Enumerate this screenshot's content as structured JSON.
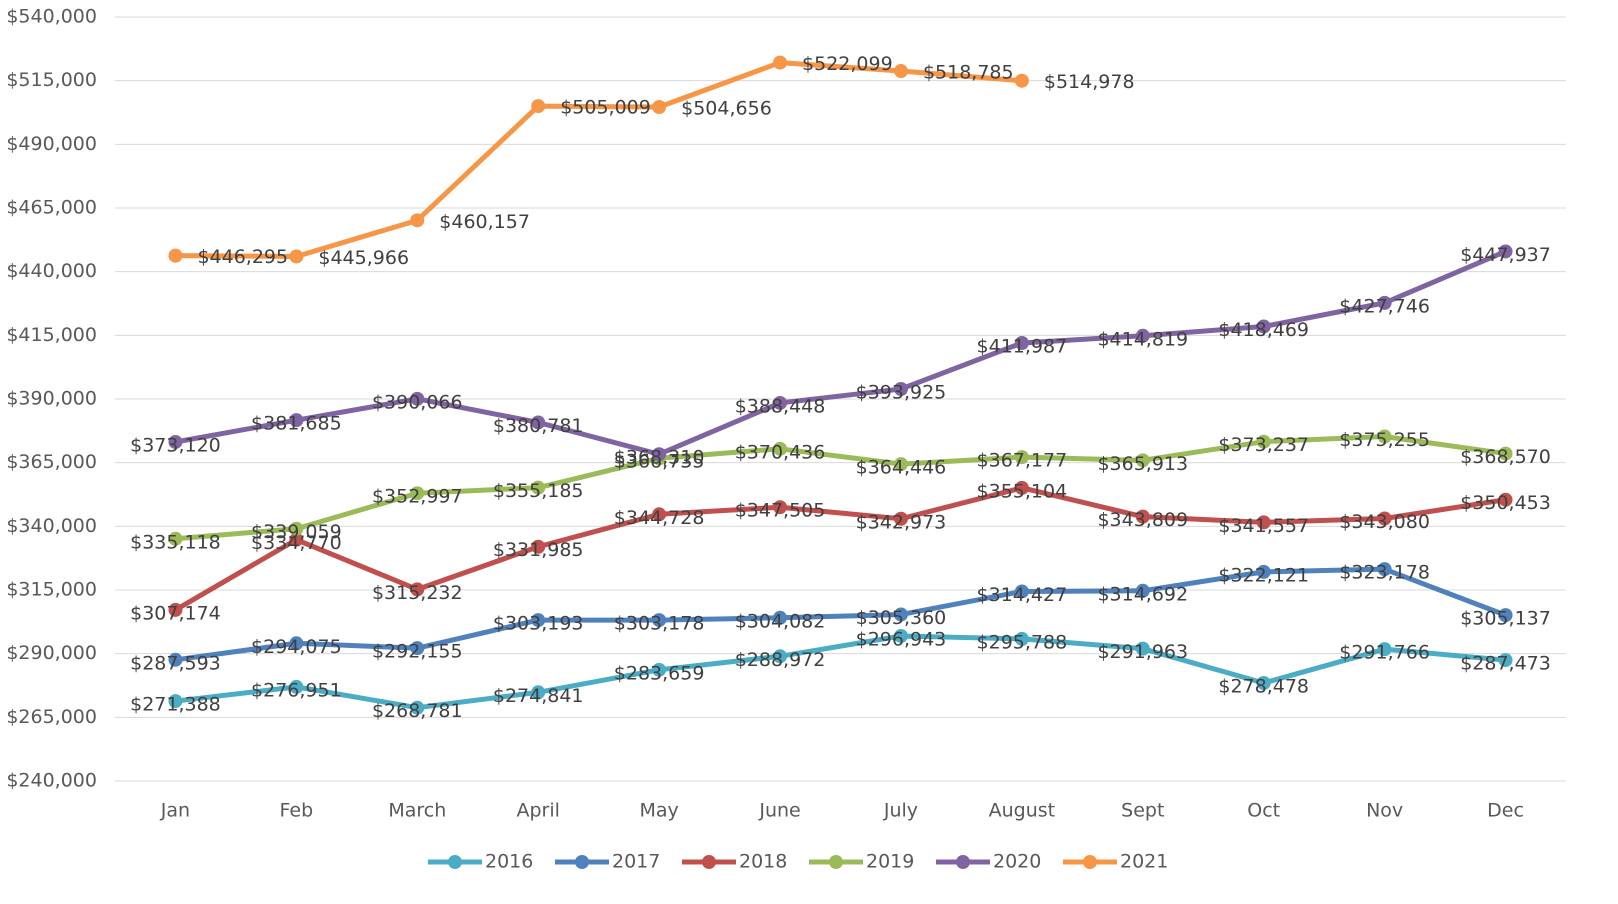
{
  "chart_data": {
    "type": "line",
    "categories": [
      "Jan",
      "Feb",
      "March",
      "April",
      "May",
      "June",
      "July",
      "August",
      "Sept",
      "Oct",
      "Nov",
      "Dec"
    ],
    "ylim": [
      240000,
      540000
    ],
    "yticks": [
      {
        "value": 240000,
        "label": "$240,000"
      },
      {
        "value": 265000,
        "label": "$265,000"
      },
      {
        "value": 290000,
        "label": "$290,000"
      },
      {
        "value": 315000,
        "label": "$315,000"
      },
      {
        "value": 340000,
        "label": "$340,000"
      },
      {
        "value": 365000,
        "label": "$365,000"
      },
      {
        "value": 390000,
        "label": "$390,000"
      },
      {
        "value": 415000,
        "label": "$415,000"
      },
      {
        "value": 440000,
        "label": "$440,000"
      },
      {
        "value": 465000,
        "label": "$465,000"
      },
      {
        "value": 490000,
        "label": "$490,000"
      },
      {
        "value": 515000,
        "label": "$515,000"
      },
      {
        "value": 540000,
        "label": "$540,000"
      }
    ],
    "grid": true,
    "legend": "bottom",
    "series": [
      {
        "name": "2016",
        "color": "#4bacc6",
        "values": [
          271388,
          276951,
          268781,
          274841,
          283659,
          288972,
          296943,
          295788,
          291963,
          278478,
          291766,
          287473
        ],
        "value_labels": [
          "$271,388",
          "$276,951",
          "$268,781",
          "$274,841",
          "$283,659",
          "$288,972",
          "$296,943",
          "$295,788",
          "$291,963",
          "$278,478",
          "$291,766",
          "$287,473"
        ]
      },
      {
        "name": "2017",
        "color": "#4f81bd",
        "values": [
          287593,
          294075,
          292155,
          303193,
          303178,
          304082,
          305360,
          314427,
          314692,
          322121,
          323178,
          305137
        ],
        "value_labels": [
          "$287,593",
          "$294,075",
          "$292,155",
          "$303,193",
          "$303,178",
          "$304,082",
          "$305,360",
          "$314,427",
          "$314,692",
          "$322,121",
          "$323,178",
          "$305,137"
        ]
      },
      {
        "name": "2018",
        "color": "#c0504d",
        "values": [
          307174,
          334770,
          315232,
          331985,
          344728,
          347505,
          342973,
          355104,
          343809,
          341557,
          343080,
          350453
        ],
        "value_labels": [
          "$307,174",
          "$334,770",
          "$315,232",
          "$331,985",
          "$344,728",
          "$347,505",
          "$342,973",
          "$355,104",
          "$343,809",
          "$341,557",
          "$343,080",
          "$350,453"
        ]
      },
      {
        "name": "2019",
        "color": "#9bbb59",
        "values": [
          335118,
          339059,
          352997,
          355185,
          366735,
          370436,
          364446,
          367177,
          365913,
          373237,
          375255,
          368570
        ],
        "value_labels": [
          "$335,118",
          "$339,059",
          "$352,997",
          "$355,185",
          "$366,735",
          "$370,436",
          "$364,446",
          "$367,177",
          "$365,913",
          "$373,237",
          "$375,255",
          "$368,570"
        ]
      },
      {
        "name": "2020",
        "color": "#8064a2",
        "values": [
          373120,
          381685,
          390066,
          380781,
          368310,
          388448,
          393925,
          411987,
          414819,
          418469,
          427746,
          447937
        ],
        "value_labels": [
          "$373,120",
          "$381,685",
          "$390,066",
          "$380,781",
          "$368,310",
          "$388,448",
          "$393,925",
          "$411,987",
          "$414,819",
          "$418,469",
          "$427,746",
          "$447,937"
        ]
      },
      {
        "name": "2021",
        "color": "#f79646",
        "values": [
          446295,
          445966,
          460157,
          505009,
          504656,
          522099,
          518785,
          514978,
          null,
          null,
          null,
          null
        ],
        "value_labels": [
          "$446,295",
          "$445,966",
          "$460,157",
          "$505,009",
          "$504,656",
          "$522,099",
          "$518,785",
          "$514,978",
          null,
          null,
          null,
          null
        ]
      }
    ]
  }
}
